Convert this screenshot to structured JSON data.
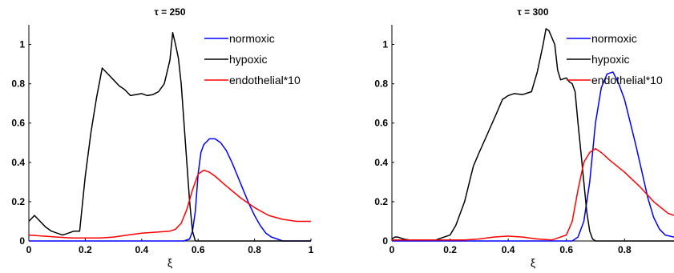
{
  "chart_data": [
    {
      "type": "line",
      "title": "τ = 250",
      "xlabel": "ξ",
      "ylabel": "",
      "xlim": [
        0,
        1
      ],
      "ylim": [
        0,
        1.1
      ],
      "xticks": [
        0,
        0.2,
        0.4,
        0.6,
        0.8,
        1
      ],
      "yticks": [
        0,
        0.2,
        0.4,
        0.6,
        0.8,
        1
      ],
      "xtick_labels": [
        "0",
        "0.2",
        "0.4",
        "0.6",
        "0.8",
        "1"
      ],
      "ytick_labels": [
        "0",
        "0.2",
        "0.4",
        "0.6",
        "0.8",
        "1"
      ],
      "legend_placement": "top-right",
      "series": [
        {
          "name": "normoxic",
          "color": "#0000ff",
          "x": [
            0,
            0.55,
            0.57,
            0.58,
            0.59,
            0.6,
            0.61,
            0.62,
            0.64,
            0.66,
            0.68,
            0.7,
            0.72,
            0.74,
            0.76,
            0.78,
            0.8,
            0.82,
            0.84,
            0.86,
            0.88,
            0.9,
            1.0
          ],
          "y": [
            0,
            0,
            0.01,
            0.05,
            0.15,
            0.34,
            0.45,
            0.49,
            0.52,
            0.52,
            0.5,
            0.46,
            0.4,
            0.33,
            0.26,
            0.19,
            0.13,
            0.08,
            0.04,
            0.02,
            0.01,
            0,
            0
          ]
        },
        {
          "name": "hypoxic",
          "color": "#000000",
          "x": [
            0,
            0.02,
            0.04,
            0.06,
            0.08,
            0.1,
            0.12,
            0.14,
            0.16,
            0.18,
            0.2,
            0.22,
            0.24,
            0.26,
            0.28,
            0.3,
            0.32,
            0.34,
            0.36,
            0.38,
            0.4,
            0.42,
            0.44,
            0.46,
            0.48,
            0.5,
            0.51,
            0.52,
            0.53,
            0.54,
            0.55,
            0.56,
            0.57,
            0.58,
            0.59,
            0.6,
            0.62,
            1.0
          ],
          "y": [
            0.1,
            0.13,
            0.1,
            0.07,
            0.05,
            0.04,
            0.03,
            0.04,
            0.05,
            0.05,
            0.33,
            0.55,
            0.73,
            0.88,
            0.85,
            0.82,
            0.79,
            0.77,
            0.74,
            0.745,
            0.75,
            0.74,
            0.745,
            0.76,
            0.8,
            0.92,
            1.06,
            1.0,
            0.93,
            0.8,
            0.6,
            0.4,
            0.2,
            0.05,
            0.0,
            0.0,
            0.0,
            0.0
          ]
        },
        {
          "name": "endothelial*10",
          "color": "#ff0000",
          "x": [
            0,
            0.05,
            0.1,
            0.15,
            0.2,
            0.25,
            0.3,
            0.35,
            0.4,
            0.45,
            0.5,
            0.52,
            0.54,
            0.56,
            0.58,
            0.6,
            0.62,
            0.64,
            0.66,
            0.7,
            0.75,
            0.8,
            0.85,
            0.9,
            0.95,
            1.0
          ],
          "y": [
            0.03,
            0.025,
            0.02,
            0.015,
            0.015,
            0.015,
            0.02,
            0.03,
            0.04,
            0.045,
            0.05,
            0.06,
            0.09,
            0.16,
            0.26,
            0.34,
            0.36,
            0.35,
            0.33,
            0.28,
            0.22,
            0.17,
            0.13,
            0.11,
            0.1,
            0.1
          ]
        }
      ]
    },
    {
      "type": "line",
      "title": "τ = 300",
      "xlabel": "ξ",
      "ylabel": "",
      "xlim": [
        0,
        0.97
      ],
      "ylim": [
        0,
        1.1
      ],
      "xticks": [
        0,
        0.2,
        0.4,
        0.6,
        0.8
      ],
      "yticks": [
        0,
        0.2,
        0.4,
        0.6,
        0.8,
        1
      ],
      "xtick_labels": [
        "0",
        "0.2",
        "0.4",
        "0.6",
        "0.8"
      ],
      "ytick_labels": [
        "0",
        "0.2",
        "0.4",
        "0.6",
        "0.8",
        "1"
      ],
      "legend_placement": "top-right",
      "series": [
        {
          "name": "normoxic",
          "color": "#0000ff",
          "x": [
            0,
            0.62,
            0.64,
            0.66,
            0.68,
            0.7,
            0.72,
            0.74,
            0.76,
            0.78,
            0.8,
            0.82,
            0.84,
            0.86,
            0.88,
            0.9,
            0.92,
            0.94,
            0.97
          ],
          "y": [
            0,
            0,
            0.02,
            0.1,
            0.3,
            0.6,
            0.78,
            0.85,
            0.86,
            0.8,
            0.72,
            0.6,
            0.48,
            0.35,
            0.22,
            0.12,
            0.06,
            0.03,
            0.02
          ]
        },
        {
          "name": "hypoxic",
          "color": "#000000",
          "x": [
            0,
            0.01,
            0.02,
            0.04,
            0.06,
            0.1,
            0.15,
            0.2,
            0.22,
            0.25,
            0.28,
            0.3,
            0.33,
            0.36,
            0.38,
            0.4,
            0.42,
            0.45,
            0.48,
            0.5,
            0.52,
            0.53,
            0.54,
            0.56,
            0.57,
            0.58,
            0.6,
            0.61,
            0.62,
            0.63,
            0.64,
            0.65,
            0.66,
            0.67,
            0.68,
            0.69,
            0.7,
            0.97
          ],
          "y": [
            0.01,
            0.02,
            0.02,
            0.01,
            0.005,
            0.005,
            0.005,
            0.03,
            0.08,
            0.2,
            0.38,
            0.45,
            0.55,
            0.65,
            0.72,
            0.74,
            0.75,
            0.745,
            0.76,
            0.86,
            1.0,
            1.08,
            1.07,
            1.0,
            0.87,
            0.82,
            0.83,
            0.81,
            0.8,
            0.76,
            0.6,
            0.45,
            0.3,
            0.15,
            0.05,
            0.01,
            0.0,
            0.0
          ]
        },
        {
          "name": "endothelial*10",
          "color": "#ff0000",
          "x": [
            0,
            0.05,
            0.1,
            0.15,
            0.2,
            0.25,
            0.3,
            0.35,
            0.4,
            0.45,
            0.5,
            0.55,
            0.6,
            0.62,
            0.64,
            0.66,
            0.68,
            0.7,
            0.72,
            0.75,
            0.8,
            0.85,
            0.9,
            0.95,
            0.97
          ],
          "y": [
            0.005,
            0.005,
            0.005,
            0.005,
            0.005,
            0.005,
            0.01,
            0.02,
            0.025,
            0.02,
            0.01,
            0.005,
            0.03,
            0.1,
            0.26,
            0.4,
            0.45,
            0.47,
            0.45,
            0.41,
            0.35,
            0.28,
            0.2,
            0.14,
            0.13
          ]
        }
      ]
    }
  ]
}
